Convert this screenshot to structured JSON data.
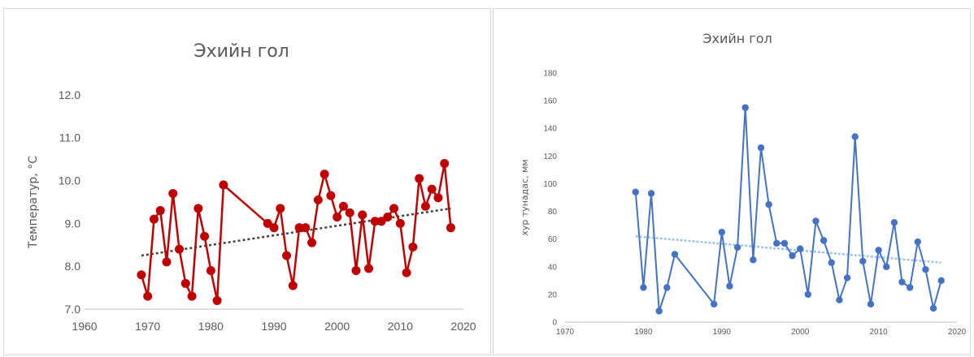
{
  "chart_data": [
    {
      "type": "line",
      "title": "Эхийн гол",
      "ylabel": "Температур, °C",
      "xlabel": "",
      "xlim": [
        1960,
        2020
      ],
      "ylim": [
        7.0,
        12.0
      ],
      "xticks": [
        "1960",
        "1970",
        "1980",
        "1990",
        "2000",
        "2010",
        "2020"
      ],
      "yticks": [
        "7.0",
        "8.0",
        "9.0",
        "10.0",
        "11.0",
        "12.0"
      ],
      "color": "#c00000",
      "trendline": true,
      "trend_color": "#404040",
      "trend": {
        "x": [
          1969,
          2018
        ],
        "y": [
          8.25,
          9.35
        ]
      },
      "series": [
        {
          "x": [
            1969,
            1970,
            1971,
            1972,
            1973,
            1974,
            1975,
            1976,
            1977,
            1978,
            1979,
            1980,
            1981,
            1982,
            1989,
            1990,
            1991,
            1992,
            1993,
            1994,
            1995,
            1996,
            1997,
            1998,
            1999,
            2000,
            2001,
            2002,
            2003,
            2004,
            2005,
            2006,
            2007,
            2008,
            2009,
            2010,
            2011,
            2012,
            2013,
            2014,
            2015,
            2016,
            2017,
            2018
          ],
          "y": [
            7.8,
            7.3,
            9.1,
            9.3,
            8.1,
            9.7,
            8.4,
            7.6,
            7.3,
            9.35,
            8.7,
            7.9,
            7.2,
            9.9,
            9.0,
            8.9,
            9.35,
            8.25,
            7.55,
            8.9,
            8.9,
            8.55,
            9.55,
            10.15,
            9.65,
            9.15,
            9.4,
            9.25,
            7.9,
            9.2,
            7.95,
            9.05,
            9.05,
            9.15,
            9.35,
            9.0,
            7.85,
            8.45,
            10.05,
            9.4,
            9.8,
            9.6,
            10.4,
            8.9
          ]
        }
      ]
    },
    {
      "type": "line",
      "title": "Эхийн гол",
      "ylabel": "хур тунадас, мм",
      "xlabel": "",
      "xlim": [
        1970,
        2020
      ],
      "ylim": [
        0,
        180
      ],
      "xticks": [
        "1970",
        "1980",
        "1990",
        "2000",
        "2010",
        "2020"
      ],
      "yticks": [
        "0",
        "20",
        "40",
        "60",
        "80",
        "100",
        "120",
        "140",
        "160",
        "180"
      ],
      "color": "#4472c4",
      "trendline": true,
      "trend_color": "#9dc3e6",
      "trend": {
        "x": [
          1979,
          2018
        ],
        "y": [
          62,
          43
        ]
      },
      "series": [
        {
          "x": [
            1979,
            1980,
            1981,
            1982,
            1983,
            1984,
            1989,
            1990,
            1991,
            1992,
            1993,
            1994,
            1995,
            1996,
            1997,
            1998,
            1999,
            2000,
            2001,
            2002,
            2003,
            2004,
            2005,
            2006,
            2007,
            2008,
            2009,
            2010,
            2011,
            2012,
            2013,
            2014,
            2015,
            2016,
            2017,
            2018
          ],
          "y": [
            94,
            25,
            93,
            8,
            25,
            49,
            13,
            65,
            26,
            54,
            155,
            45,
            126,
            85,
            57,
            57,
            48,
            53,
            20,
            73,
            59,
            43,
            16,
            32,
            134,
            44,
            13,
            52,
            40,
            72,
            29,
            25,
            58,
            38,
            10,
            30
          ]
        }
      ]
    }
  ]
}
